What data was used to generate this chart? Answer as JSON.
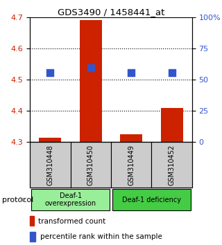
{
  "title": "GDS3490 / 1458441_at",
  "samples": [
    "GSM310448",
    "GSM310450",
    "GSM310449",
    "GSM310452"
  ],
  "bar_base": 4.3,
  "bar_tops": [
    4.315,
    4.69,
    4.325,
    4.41
  ],
  "blue_y": [
    4.523,
    4.537,
    4.523,
    4.523
  ],
  "ylim": [
    4.3,
    4.7
  ],
  "yticks_left": [
    4.3,
    4.4,
    4.5,
    4.6,
    4.7
  ],
  "yticks_right": [
    0,
    25,
    50,
    75,
    100
  ],
  "ytick_labels_right": [
    "0",
    "25",
    "50",
    "75",
    "100%"
  ],
  "bar_color": "#cc2200",
  "blue_color": "#3355cc",
  "group1_label": "Deaf-1\noverexpression",
  "group2_label": "Deaf-1 deficiency",
  "group1_color": "#99ee99",
  "group2_color": "#44cc44",
  "legend_red_label": "transformed count",
  "legend_blue_label": "percentile rank within the sample",
  "protocol_label": "protocol",
  "background_color": "#ffffff",
  "tick_label_color_left": "#cc2200",
  "tick_label_color_right": "#3355cc",
  "bar_width": 0.55,
  "blue_marker_size": 55,
  "sample_box_color": "#cccccc",
  "grid_color": "#000000",
  "grid_linestyle": ":",
  "grid_linewidth": 0.8
}
